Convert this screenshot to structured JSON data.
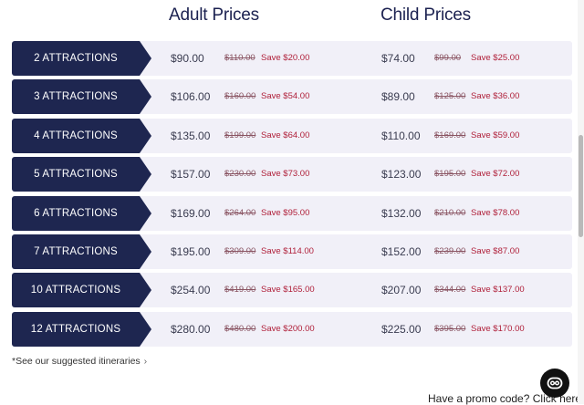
{
  "headers": {
    "adult": "Adult Prices",
    "child": "Child Prices"
  },
  "rows": [
    {
      "label": "2 ATTRACTIONS",
      "adult_price": "$90.00",
      "adult_orig": "$110.00",
      "adult_save": "Save $20.00",
      "child_price": "$74.00",
      "child_orig": "$99.00",
      "child_save": "Save $25.00"
    },
    {
      "label": "3 ATTRACTIONS",
      "adult_price": "$106.00",
      "adult_orig": "$160.00",
      "adult_save": "Save $54.00",
      "child_price": "$89.00",
      "child_orig": "$125.00",
      "child_save": "Save $36.00"
    },
    {
      "label": "4 ATTRACTIONS",
      "adult_price": "$135.00",
      "adult_orig": "$199.00",
      "adult_save": "Save $64.00",
      "child_price": "$110.00",
      "child_orig": "$169.00",
      "child_save": "Save $59.00"
    },
    {
      "label": "5 ATTRACTIONS",
      "adult_price": "$157.00",
      "adult_orig": "$230.00",
      "adult_save": "Save $73.00",
      "child_price": "$123.00",
      "child_orig": "$195.00",
      "child_save": "Save $72.00"
    },
    {
      "label": "6 ATTRACTIONS",
      "adult_price": "$169.00",
      "adult_orig": "$264.00",
      "adult_save": "Save $95.00",
      "child_price": "$132.00",
      "child_orig": "$210.00",
      "child_save": "Save $78.00"
    },
    {
      "label": "7 ATTRACTIONS",
      "adult_price": "$195.00",
      "adult_orig": "$309.00",
      "adult_save": "Save $114.00",
      "child_price": "$152.00",
      "child_orig": "$239.00",
      "child_save": "Save $87.00"
    },
    {
      "label": "10 ATTRACTIONS",
      "adult_price": "$254.00",
      "adult_orig": "$419.00",
      "adult_save": "Save $165.00",
      "child_price": "$207.00",
      "child_orig": "$344.00",
      "child_save": "Save $137.00"
    },
    {
      "label": "12 ATTRACTIONS",
      "adult_price": "$280.00",
      "adult_orig": "$480.00",
      "adult_save": "Save $200.00",
      "child_price": "$225.00",
      "child_orig": "$395.00",
      "child_save": "Save $170.00"
    }
  ],
  "itineraries_link": "*See our suggested itineraries",
  "promo_link": "Have a promo code? Click here",
  "icons": {
    "itineraries": "chevron-right-icon",
    "promo": "chevron-down-icon",
    "fab": "chat-icon"
  },
  "colors": {
    "label_bg": "#1e2650",
    "row_bg": "#f1f0f8",
    "save": "#b0203a",
    "orig": "#8a5563"
  }
}
